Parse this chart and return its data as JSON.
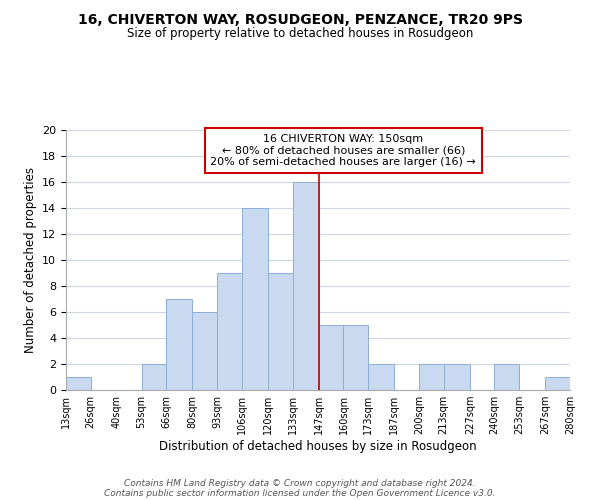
{
  "title": "16, CHIVERTON WAY, ROSUDGEON, PENZANCE, TR20 9PS",
  "subtitle": "Size of property relative to detached houses in Rosudgeon",
  "xlabel": "Distribution of detached houses by size in Rosudgeon",
  "ylabel": "Number of detached properties",
  "bin_edges": [
    13,
    26,
    40,
    53,
    66,
    80,
    93,
    106,
    120,
    133,
    147,
    160,
    173,
    187,
    200,
    213,
    227,
    240,
    253,
    267,
    280
  ],
  "counts": [
    1,
    0,
    0,
    2,
    7,
    6,
    9,
    14,
    9,
    16,
    5,
    5,
    2,
    0,
    2,
    2,
    0,
    2,
    0,
    1
  ],
  "bar_color": "#c8d9f0",
  "bar_edge_color": "#8dafd4",
  "reference_line_x": 147,
  "reference_line_color": "#cc0000",
  "annotation_line1": "16 CHIVERTON WAY: 150sqm",
  "annotation_line2": "← 80% of detached houses are smaller (66)",
  "annotation_line3": "20% of semi-detached houses are larger (16) →",
  "ylim": [
    0,
    20
  ],
  "yticks": [
    0,
    2,
    4,
    6,
    8,
    10,
    12,
    14,
    16,
    18,
    20
  ],
  "tick_labels": [
    "13sqm",
    "26sqm",
    "40sqm",
    "53sqm",
    "66sqm",
    "80sqm",
    "93sqm",
    "106sqm",
    "120sqm",
    "133sqm",
    "147sqm",
    "160sqm",
    "173sqm",
    "187sqm",
    "200sqm",
    "213sqm",
    "227sqm",
    "240sqm",
    "253sqm",
    "267sqm",
    "280sqm"
  ],
  "footer_line1": "Contains HM Land Registry data © Crown copyright and database right 2024.",
  "footer_line2": "Contains public sector information licensed under the Open Government Licence v3.0.",
  "background_color": "#ffffff",
  "grid_color": "#ccd6e8"
}
